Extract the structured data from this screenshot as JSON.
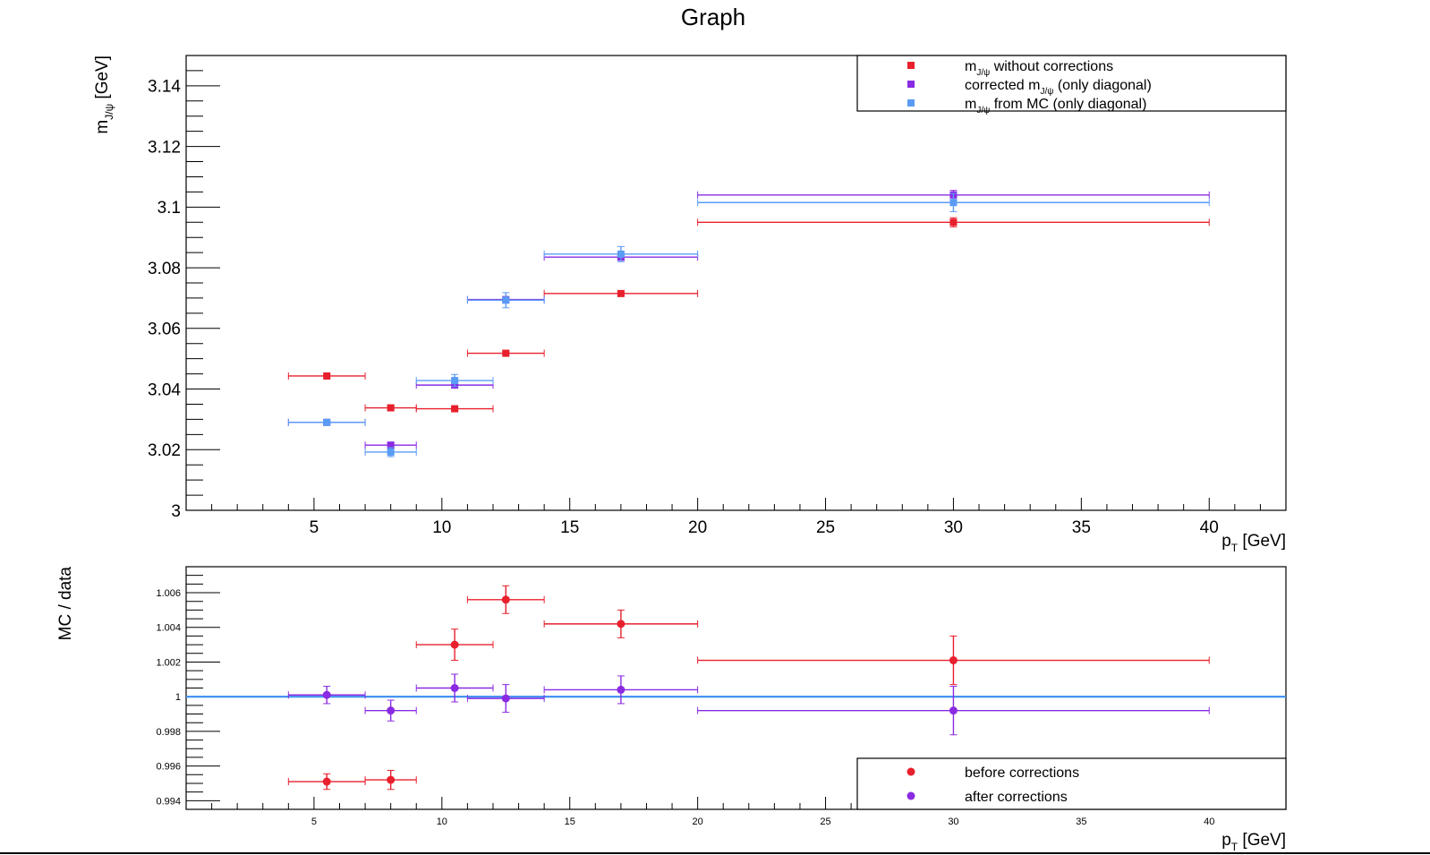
{
  "title": "Graph",
  "chart_data": [
    {
      "type": "scatter",
      "xlabel": "p",
      "xlabel_sub": "T",
      "xlabel_unit": " [GeV]",
      "ylabel": "m",
      "ylabel_sub": "J/ψ",
      "ylabel_unit": " [GeV]",
      "xlim": [
        0,
        43
      ],
      "ylim": [
        3.0,
        3.15
      ],
      "x_ticks": [
        5,
        10,
        15,
        20,
        25,
        30,
        35,
        40
      ],
      "y_ticks": [
        3,
        3.02,
        3.04,
        3.06,
        3.08,
        3.1,
        3.12,
        3.14
      ],
      "y_tick_labels": [
        "3",
        "3.02",
        "3.04",
        "3.06",
        "3.08",
        "3.1",
        "3.12",
        "3.14"
      ],
      "legend": {
        "placement": "top-right",
        "entries": [
          {
            "series": 0,
            "pre": "m",
            "sub": "J/ψ",
            "post": " without corrections"
          },
          {
            "series": 1,
            "pre": "corrected m",
            "sub": "J/ψ",
            "post": " (only diagonal)"
          },
          {
            "series": 2,
            "pre": "m",
            "sub": "J/ψ",
            "post": " from MC (only diagonal)"
          }
        ]
      },
      "series": [
        {
          "color": "#e8202d",
          "marker": "square",
          "points": [
            {
              "x": 5.5,
              "y": 3.0443,
              "xlo": 4,
              "xhi": 7,
              "yerr": 0.0005
            },
            {
              "x": 8,
              "y": 3.0338,
              "xlo": 7,
              "xhi": 9,
              "yerr": 0.0005
            },
            {
              "x": 10.5,
              "y": 3.0335,
              "xlo": 9,
              "xhi": 12,
              "yerr": 0.0005
            },
            {
              "x": 12.5,
              "y": 3.0518,
              "xlo": 11,
              "xhi": 14,
              "yerr": 0.0005
            },
            {
              "x": 17,
              "y": 3.0715,
              "xlo": 14,
              "xhi": 20,
              "yerr": 0.0005
            },
            {
              "x": 30,
              "y": 3.095,
              "xlo": 20,
              "xhi": 40,
              "yerr": 0.0015
            }
          ]
        },
        {
          "color": "#8a2be2",
          "marker": "square",
          "points": [
            {
              "x": 5.5,
              "y": 3.029,
              "xlo": 4,
              "xhi": 7,
              "yerr": 0.0005
            },
            {
              "x": 8,
              "y": 3.0215,
              "xlo": 7,
              "xhi": 9,
              "yerr": 0.0008
            },
            {
              "x": 10.5,
              "y": 3.0413,
              "xlo": 9,
              "xhi": 12,
              "yerr": 0.0008
            },
            {
              "x": 12.5,
              "y": 3.0695,
              "xlo": 11,
              "xhi": 14,
              "yerr": 0.0008
            },
            {
              "x": 17,
              "y": 3.0835,
              "xlo": 14,
              "xhi": 20,
              "yerr": 0.001
            },
            {
              "x": 30,
              "y": 3.104,
              "xlo": 20,
              "xhi": 40,
              "yerr": 0.0015
            }
          ]
        },
        {
          "color": "#5a9cf5",
          "marker": "square",
          "points": [
            {
              "x": 5.5,
              "y": 3.029,
              "xlo": 4,
              "xhi": 7,
              "yerr": 0.0005
            },
            {
              "x": 8,
              "y": 3.0192,
              "xlo": 7,
              "xhi": 9,
              "yerr": 0.0015
            },
            {
              "x": 10.5,
              "y": 3.0428,
              "xlo": 9,
              "xhi": 12,
              "yerr": 0.002
            },
            {
              "x": 12.5,
              "y": 3.0693,
              "xlo": 11,
              "xhi": 14,
              "yerr": 0.0025
            },
            {
              "x": 17,
              "y": 3.0845,
              "xlo": 14,
              "xhi": 20,
              "yerr": 0.0025
            },
            {
              "x": 30,
              "y": 3.1015,
              "xlo": 20,
              "xhi": 40,
              "yerr": 0.003
            }
          ]
        }
      ]
    },
    {
      "type": "scatter",
      "xlabel": "p",
      "xlabel_sub": "T",
      "xlabel_unit": " [GeV]",
      "ylabel": "MC / data",
      "xlim": [
        0,
        43
      ],
      "ylim": [
        0.9935,
        1.0075
      ],
      "x_ticks": [
        5,
        10,
        15,
        20,
        25,
        30,
        35,
        40
      ],
      "y_ticks": [
        0.994,
        0.996,
        0.998,
        1,
        1.002,
        1.004,
        1.006
      ],
      "y_tick_labels": [
        "0.994",
        "0.996",
        "0.998",
        "1",
        "1.002",
        "1.004",
        "1.006"
      ],
      "reference_line": {
        "y": 1,
        "color": "#3b8cf0"
      },
      "legend": {
        "placement": "bottom-right",
        "entries": [
          {
            "series": 0,
            "text": "before corrections"
          },
          {
            "series": 1,
            "text": "after corrections"
          }
        ]
      },
      "series": [
        {
          "color": "#e8202d",
          "marker": "circle",
          "points": [
            {
              "x": 5.5,
              "y": 0.9951,
              "xlo": 4,
              "xhi": 7,
              "yerr": 0.00045
            },
            {
              "x": 8,
              "y": 0.9952,
              "xlo": 7,
              "xhi": 9,
              "yerr": 0.00055
            },
            {
              "x": 10.5,
              "y": 1.003,
              "xlo": 9,
              "xhi": 12,
              "yerr": 0.0009
            },
            {
              "x": 12.5,
              "y": 1.0056,
              "xlo": 11,
              "xhi": 14,
              "yerr": 0.0008
            },
            {
              "x": 17,
              "y": 1.0042,
              "xlo": 14,
              "xhi": 20,
              "yerr": 0.0008
            },
            {
              "x": 30,
              "y": 1.0021,
              "xlo": 20,
              "xhi": 40,
              "yerr": 0.0014
            }
          ]
        },
        {
          "color": "#8a2be2",
          "marker": "circle",
          "points": [
            {
              "x": 5.5,
              "y": 1.0001,
              "xlo": 4,
              "xhi": 7,
              "yerr": 0.0005
            },
            {
              "x": 8,
              "y": 0.9992,
              "xlo": 7,
              "xhi": 9,
              "yerr": 0.0006
            },
            {
              "x": 10.5,
              "y": 1.0005,
              "xlo": 9,
              "xhi": 12,
              "yerr": 0.0008
            },
            {
              "x": 12.5,
              "y": 0.9999,
              "xlo": 11,
              "xhi": 14,
              "yerr": 0.0008
            },
            {
              "x": 17,
              "y": 1.0004,
              "xlo": 14,
              "xhi": 20,
              "yerr": 0.0008
            },
            {
              "x": 30,
              "y": 0.9992,
              "xlo": 20,
              "xhi": 40,
              "yerr": 0.0014
            }
          ]
        }
      ]
    }
  ]
}
